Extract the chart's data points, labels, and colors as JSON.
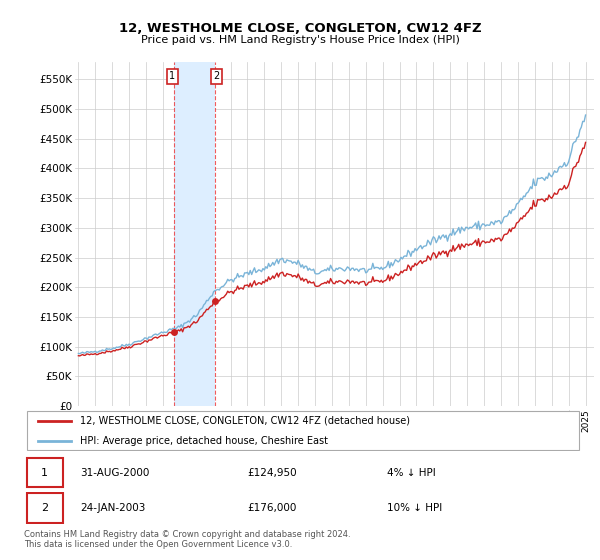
{
  "title": "12, WESTHOLME CLOSE, CONGLETON, CW12 4FZ",
  "subtitle": "Price paid vs. HM Land Registry's House Price Index (HPI)",
  "legend_line1": "12, WESTHOLME CLOSE, CONGLETON, CW12 4FZ (detached house)",
  "legend_line2": "HPI: Average price, detached house, Cheshire East",
  "transaction1_date": "31-AUG-2000",
  "transaction1_price": 124950,
  "transaction1_note": "4% ↓ HPI",
  "transaction1_year": 2000.664,
  "transaction2_date": "24-JAN-2003",
  "transaction2_price": 176000,
  "transaction2_note": "10% ↓ HPI",
  "transaction2_year": 2003.064,
  "footnote": "Contains HM Land Registry data © Crown copyright and database right 2024.\nThis data is licensed under the Open Government Licence v3.0.",
  "hpi_color": "#7ab4d8",
  "price_color": "#cc2222",
  "marker_color": "#cc2222",
  "vband_color": "#ddeeff",
  "vline_color": "#ee3333",
  "ylim_min": 0,
  "ylim_max": 580000,
  "xlim_min": 1994.8,
  "xlim_max": 2025.5,
  "yticks": [
    0,
    50000,
    100000,
    150000,
    200000,
    250000,
    300000,
    350000,
    400000,
    450000,
    500000,
    550000
  ],
  "ytick_labels": [
    "£0",
    "£50K",
    "£100K",
    "£150K",
    "£200K",
    "£250K",
    "£300K",
    "£350K",
    "£400K",
    "£450K",
    "£500K",
    "£550K"
  ]
}
